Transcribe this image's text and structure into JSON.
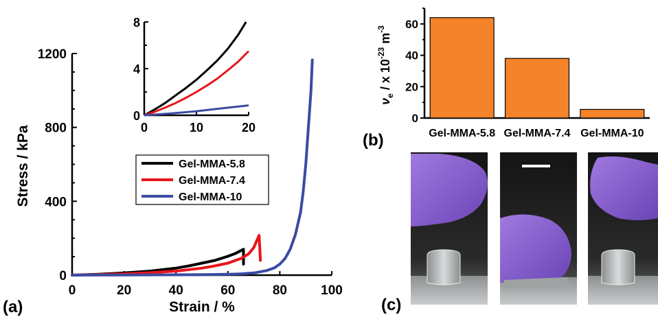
{
  "panels": {
    "a_label": "(a)",
    "b_label": "(b)",
    "c_label": "(c)"
  },
  "chart_data": [
    {
      "id": "stress-strain",
      "type": "line",
      "xlabel": "Strain / %",
      "ylabel": "Stress / kPa",
      "xlim": [
        0,
        100
      ],
      "ylim": [
        0,
        1200
      ],
      "xticks": [
        "0",
        "20",
        "40",
        "60",
        "80",
        "100"
      ],
      "yticks": [
        "0",
        "400",
        "800",
        "1200"
      ],
      "legend_position": "center-right",
      "series": [
        {
          "name": "Gel-MMA-5.8",
          "color": "#000000",
          "x": [
            0,
            10,
            20,
            30,
            40,
            45,
            50,
            55,
            60,
            63,
            66,
            66
          ],
          "y": [
            0,
            5,
            12,
            22,
            38,
            50,
            65,
            80,
            102,
            118,
            140,
            60
          ]
        },
        {
          "name": "Gel-MMA-7.4",
          "color": "#e8141b",
          "x": [
            0,
            10,
            20,
            30,
            40,
            50,
            55,
            60,
            65,
            68,
            70,
            72,
            72.3,
            72.5
          ],
          "y": [
            0,
            3,
            7,
            13,
            22,
            38,
            50,
            65,
            90,
            115,
            150,
            215,
            140,
            80
          ]
        },
        {
          "name": "Gel-MMA-10",
          "color": "#3a4ba3",
          "x": [
            0,
            20,
            40,
            50,
            60,
            65,
            70,
            75,
            78,
            80,
            82,
            84,
            86,
            88,
            89,
            90,
            91,
            92,
            92.5
          ],
          "y": [
            0,
            1,
            2,
            3,
            5,
            7,
            12,
            25,
            40,
            60,
            90,
            140,
            220,
            340,
            450,
            600,
            800,
            1000,
            1165
          ]
        }
      ]
    },
    {
      "id": "stress-strain-inset",
      "type": "line",
      "xlim": [
        0,
        20
      ],
      "ylim": [
        0,
        8
      ],
      "xticks": [
        "0",
        "10",
        "20"
      ],
      "yticks": [
        "0",
        "4",
        "8"
      ],
      "series": [
        {
          "name": "Gel-MMA-5.8",
          "color": "#000000",
          "x": [
            0,
            2,
            4,
            6,
            8,
            10,
            12,
            14,
            16,
            18,
            19.5
          ],
          "y": [
            0,
            0.5,
            1.05,
            1.7,
            2.35,
            3.05,
            3.85,
            4.7,
            5.7,
            6.9,
            8.0
          ]
        },
        {
          "name": "Gel-MMA-7.4",
          "color": "#e8141b",
          "x": [
            0,
            2,
            4,
            6,
            8,
            10,
            12,
            14,
            16,
            18,
            20
          ],
          "y": [
            0,
            0.3,
            0.65,
            1.05,
            1.5,
            2.0,
            2.55,
            3.15,
            3.85,
            4.6,
            5.5
          ]
        },
        {
          "name": "Gel-MMA-10",
          "color": "#3a4ba3",
          "x": [
            0,
            5,
            10,
            15,
            20
          ],
          "y": [
            0,
            0.15,
            0.35,
            0.6,
            0.85
          ]
        }
      ]
    },
    {
      "id": "crosslink-density",
      "type": "bar",
      "ylabel_parts": {
        "symbol": "ν",
        "symbol_sub": "e",
        "text1": " / x 10",
        "exp1": "-23",
        "text2": " m",
        "exp2": "-3"
      },
      "ylim": [
        0,
        70
      ],
      "yticks": [
        "0",
        "20",
        "40",
        "60"
      ],
      "categories": [
        "Gel-MMA-5.8",
        "Gel-MMA-7.4",
        "Gel-MMA-10"
      ],
      "values": [
        64,
        38,
        5.5
      ],
      "bar_color": "#f5832a"
    }
  ],
  "photos": {
    "count": 3,
    "scale_bar": true,
    "glove_color": "#8a5ed0"
  }
}
